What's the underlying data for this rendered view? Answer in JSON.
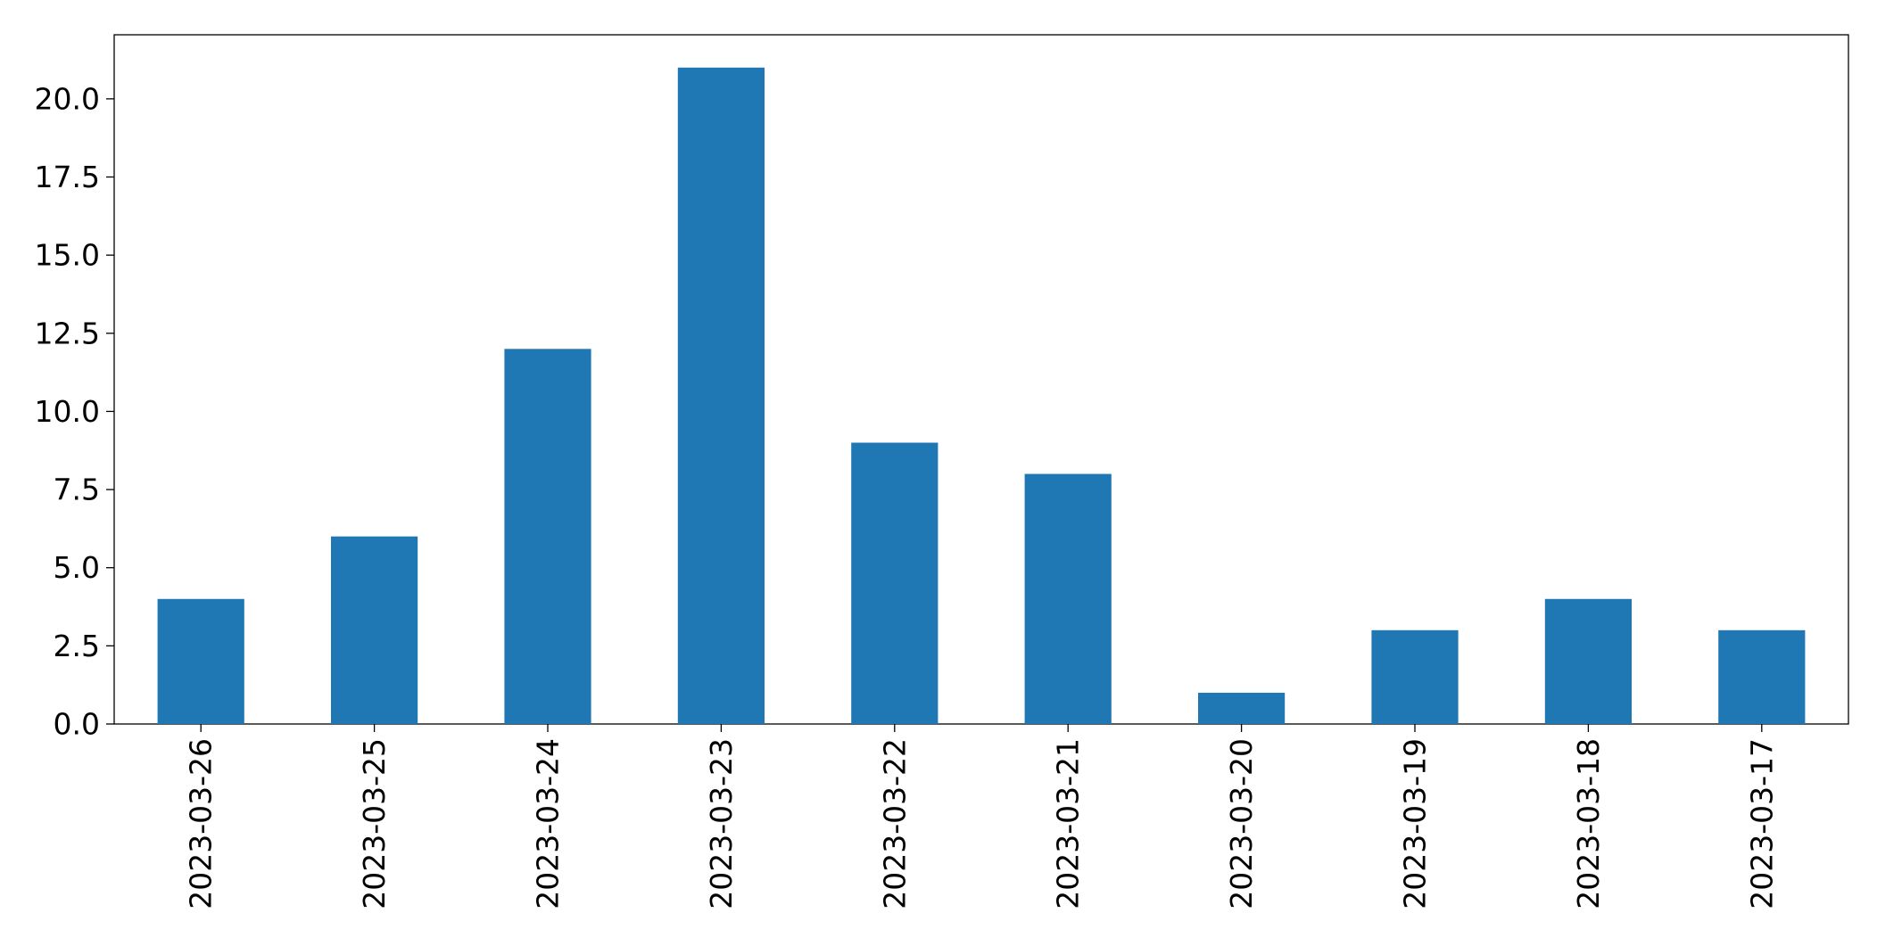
{
  "chart_data": {
    "type": "bar",
    "title": "",
    "xlabel": "",
    "ylabel": "",
    "categories": [
      "2023-03-26",
      "2023-03-25",
      "2023-03-24",
      "2023-03-23",
      "2023-03-22",
      "2023-03-21",
      "2023-03-20",
      "2023-03-19",
      "2023-03-18",
      "2023-03-17"
    ],
    "values": [
      4,
      6,
      12,
      21,
      9,
      8,
      1,
      3,
      4,
      3
    ],
    "ylim": [
      0,
      22.05
    ],
    "yticks": [
      "0.0",
      "2.5",
      "5.0",
      "7.5",
      "10.0",
      "12.5",
      "15.0",
      "17.5",
      "20.0"
    ],
    "x_tick_rotation": "vertical",
    "grid": false,
    "legend": "none",
    "bar_color": "#1f77b4"
  }
}
